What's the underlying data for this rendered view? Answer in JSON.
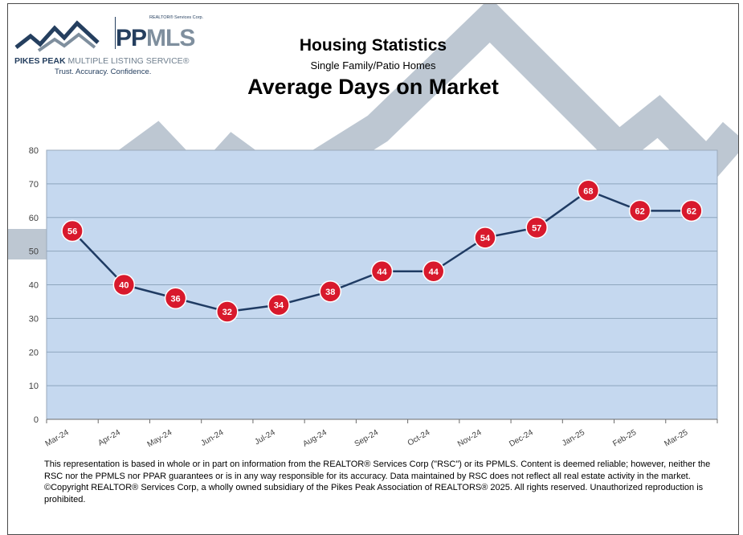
{
  "logo": {
    "corp": "REALTOR® Services Corp.",
    "brand_prefix": "PP",
    "brand_suffix": "MLS",
    "name_part1": "PIKES PEAK",
    "name_part2": " MULTIPLE LISTING SERVICE",
    "name_trademark": "®",
    "tagline": "Trust. Accuracy. Confidence."
  },
  "header": {
    "title": "Housing Statistics",
    "subtitle": "Single Family/Patio Homes",
    "chart_title": "Average Days on Market"
  },
  "chart_data": {
    "type": "line",
    "title": "Average Days on Market",
    "categories": [
      "Mar-24",
      "Apr-24",
      "May-24",
      "Jun-24",
      "Jul-24",
      "Aug-24",
      "Sep-24",
      "Oct-24",
      "Nov-24",
      "Dec-24",
      "Jan-25",
      "Feb-25",
      "Mar-25"
    ],
    "series": [
      {
        "values": [
          56,
          40,
          36,
          32,
          34,
          38,
          44,
          44,
          54,
          57,
          68,
          62,
          62
        ]
      }
    ],
    "ylim": [
      0,
      80
    ],
    "yticks": [
      0,
      10,
      20,
      30,
      40,
      50,
      60,
      70,
      80
    ],
    "grid": true,
    "data_labels": true,
    "colors": {
      "plot_background": "#c5d8ef",
      "line": "#1f3b63",
      "marker": "#d8192c",
      "marker_border": "#ffffff",
      "label": "#ffffff",
      "gridline": "#8ea5bd",
      "watermark": "#bdc7d2"
    }
  },
  "footer": {
    "disclaimer": "This representation is based in whole or in part on information from the REALTOR® Services Corp (\"RSC\") or its PPMLS. Content is deemed reliable; however, neither the RSC nor the PPMLS nor PPAR guarantees or is in any way responsible for its accuracy. Data maintained by RSC does not reflect all real estate activity in the market. ©Copyright REALTOR® Services Corp, a wholly owned subsidiary of the Pikes Peak Association of REALTORS® 2025. All rights reserved. Unauthorized reproduction is prohibited."
  }
}
